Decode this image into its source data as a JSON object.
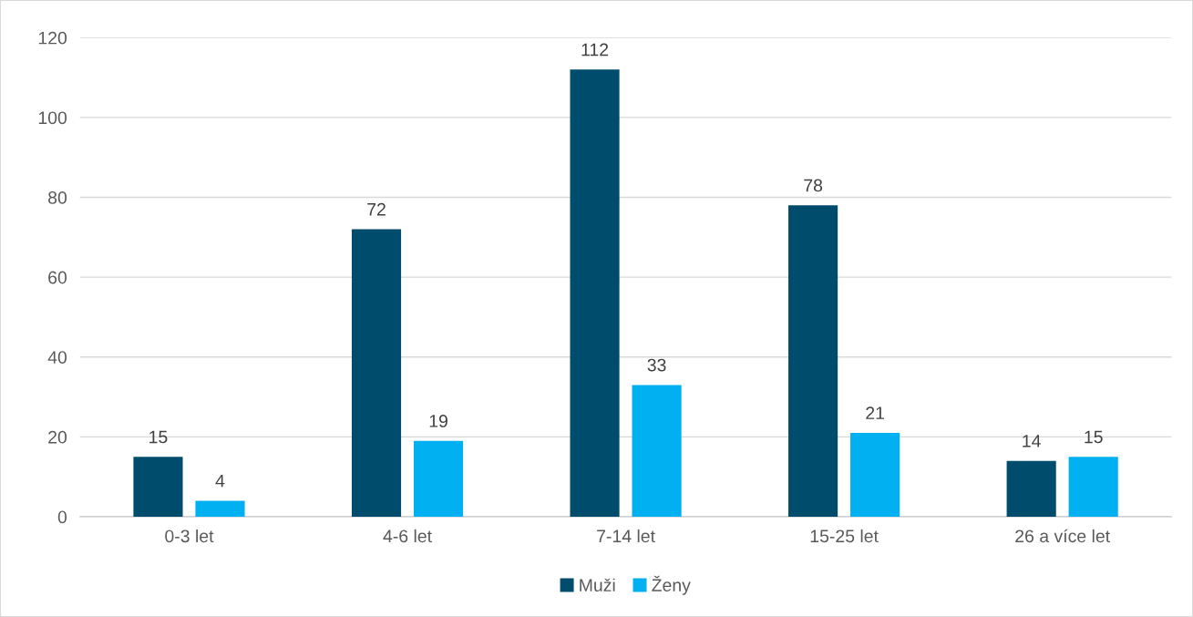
{
  "chart_data": {
    "type": "bar",
    "categories": [
      "0-3 let",
      "4-6 let",
      "7-14 let",
      "15-25 let",
      "26 a více let"
    ],
    "series": [
      {
        "name": "Muži",
        "color": "#004c6d",
        "values": [
          15,
          72,
          112,
          78,
          14
        ]
      },
      {
        "name": "Ženy",
        "color": "#00b0f0",
        "values": [
          4,
          19,
          33,
          21,
          15
        ]
      }
    ],
    "ylim": [
      0,
      120
    ],
    "yticks": [
      0,
      20,
      40,
      60,
      80,
      100,
      120
    ],
    "grid": "y",
    "legend": "bottom",
    "data_labels": true
  }
}
